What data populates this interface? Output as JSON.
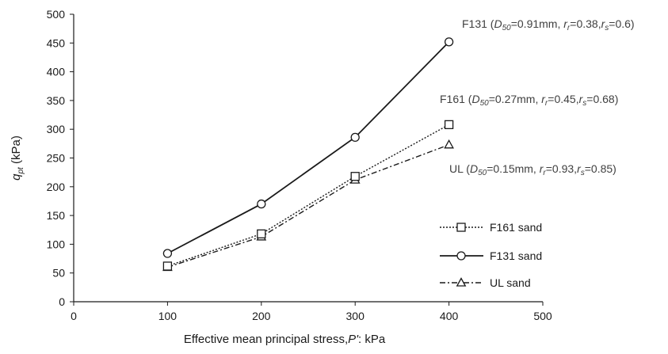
{
  "chart_data": {
    "type": "line",
    "x": [
      100,
      200,
      300,
      400
    ],
    "xlim": [
      0,
      500
    ],
    "ylim": [
      0,
      500
    ],
    "xticks": [
      0,
      100,
      200,
      300,
      400,
      500
    ],
    "yticks": [
      0,
      50,
      100,
      150,
      200,
      250,
      300,
      350,
      400,
      450,
      500
    ],
    "xlabel": "Effective mean principal stress, P': kPa",
    "ylabel": "q_pt (kPa)",
    "ylabel_parts": {
      "main": "q",
      "sub": "pt",
      "rest": " (kPa)"
    },
    "xlabel_parts": {
      "pre": "Effective mean principal stress,",
      "ital": "P'",
      "post": ": kPa"
    },
    "grid": false,
    "legend_position": "right",
    "series": [
      {
        "name": "F161 sand",
        "key": "f161",
        "values": [
          62,
          118,
          218,
          308
        ],
        "marker": "square",
        "dash": "dotted",
        "color": "#1a1a1a"
      },
      {
        "name": "F131 sand",
        "key": "f131",
        "values": [
          84,
          170,
          286,
          452
        ],
        "marker": "circle",
        "dash": "solid",
        "color": "#1a1a1a"
      },
      {
        "name": "UL sand",
        "key": "ul",
        "values": [
          60,
          113,
          212,
          273
        ],
        "marker": "triangle",
        "dash": "dashdot",
        "color": "#1a1a1a"
      }
    ],
    "annotations": [
      {
        "key": "f131",
        "text": "F131 (D50=0.91mm, rr=0.38,rs=0.6)",
        "parts": {
          "name": "F131 (",
          "d": "D",
          "dsub": "50",
          "dval": "=0.91mm, ",
          "rr": "r",
          "rrsub": "r",
          "rrval": "=0.38,",
          "rs": "r",
          "rssub": "s",
          "rsval": "=0.6)"
        }
      },
      {
        "key": "f161",
        "text": "F161 (D50=0.27mm, rr=0.45,rs=0.68)",
        "parts": {
          "name": "F161 (",
          "d": "D",
          "dsub": "50",
          "dval": "=0.27mm, ",
          "rr": "r",
          "rrsub": "r",
          "rrval": "=0.45,",
          "rs": "r",
          "rssub": "s",
          "rsval": "=0.68)"
        }
      },
      {
        "key": "ul",
        "text": "UL (D50=0.15mm, rr=0.93,rs=0.85)",
        "parts": {
          "name": "UL (",
          "d": "D",
          "dsub": "50",
          "dval": "=0.15mm, ",
          "rr": "r",
          "rrsub": "r",
          "rrval": "=0.93,",
          "rs": "r",
          "rssub": "s",
          "rsval": "=0.85)"
        }
      }
    ]
  }
}
